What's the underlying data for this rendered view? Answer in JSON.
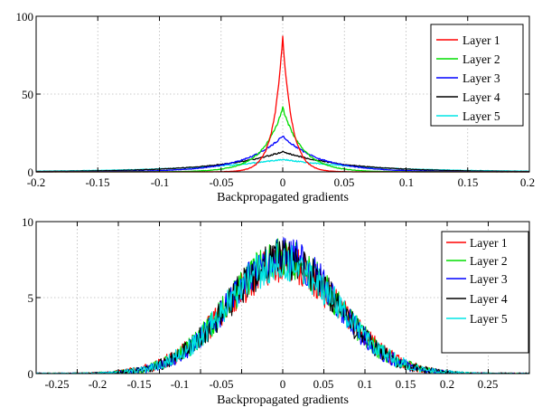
{
  "chart_data": [
    {
      "type": "line",
      "title": "",
      "xlabel": "Backpropagated gradients",
      "ylabel": "",
      "xlim": [
        -0.2,
        0.2
      ],
      "ylim": [
        0,
        100
      ],
      "xticks": [
        -0.2,
        -0.15,
        -0.1,
        -0.05,
        0,
        0.05,
        0.1,
        0.15,
        0.2
      ],
      "xtick_labels": [
        "-0.2",
        "-0.15",
        "-0.1",
        "-0.05",
        "0",
        "0.05",
        "0.1",
        "0.15",
        "0.2"
      ],
      "yticks": [
        0,
        50,
        100
      ],
      "ytick_labels": [
        "0",
        "50",
        "100"
      ],
      "grid": true,
      "legend_position": "top-right",
      "series": [
        {
          "name": "Layer 1",
          "color": "#ff0000",
          "peak": 87,
          "width": 0.0075
        },
        {
          "name": "Layer 2",
          "color": "#00dd00",
          "peak": 41,
          "width": 0.016
        },
        {
          "name": "Layer 3",
          "color": "#0000ff",
          "peak": 23,
          "width": 0.03
        },
        {
          "name": "Layer 4",
          "color": "#000000",
          "peak": 13,
          "width": 0.05
        },
        {
          "name": "Layer 5",
          "color": "#00e5e5",
          "peak": 8,
          "width": 0.07
        }
      ]
    },
    {
      "type": "line",
      "title": "",
      "xlabel": "Backpropagated gradients",
      "ylabel": "",
      "xlim": [
        -0.3,
        0.3
      ],
      "ylim": [
        0,
        10
      ],
      "xticks": [
        -0.25,
        -0.2,
        -0.15,
        -0.1,
        -0.05,
        0,
        0.05,
        0.1,
        0.15,
        0.2,
        0.25
      ],
      "xtick_labels": [
        "-0.25",
        "-0.2",
        "-0.15",
        "-0.1",
        "-0.05",
        "0",
        "0.05",
        "0.1",
        "0.15",
        "0.2",
        "0.25"
      ],
      "yticks": [
        0,
        5,
        10
      ],
      "ytick_labels": [
        "0",
        "5",
        "10"
      ],
      "grid": true,
      "legend_position": "right",
      "series": [
        {
          "name": "Layer 1",
          "color": "#ff0000",
          "peak": 7.2,
          "width": 0.068
        },
        {
          "name": "Layer 2",
          "color": "#00dd00",
          "peak": 7.6,
          "width": 0.066
        },
        {
          "name": "Layer 3",
          "color": "#0000ff",
          "peak": 7.8,
          "width": 0.065
        },
        {
          "name": "Layer 4",
          "color": "#000000",
          "peak": 7.5,
          "width": 0.066
        },
        {
          "name": "Layer 5",
          "color": "#00e5e5",
          "peak": 7.4,
          "width": 0.067
        }
      ]
    }
  ]
}
